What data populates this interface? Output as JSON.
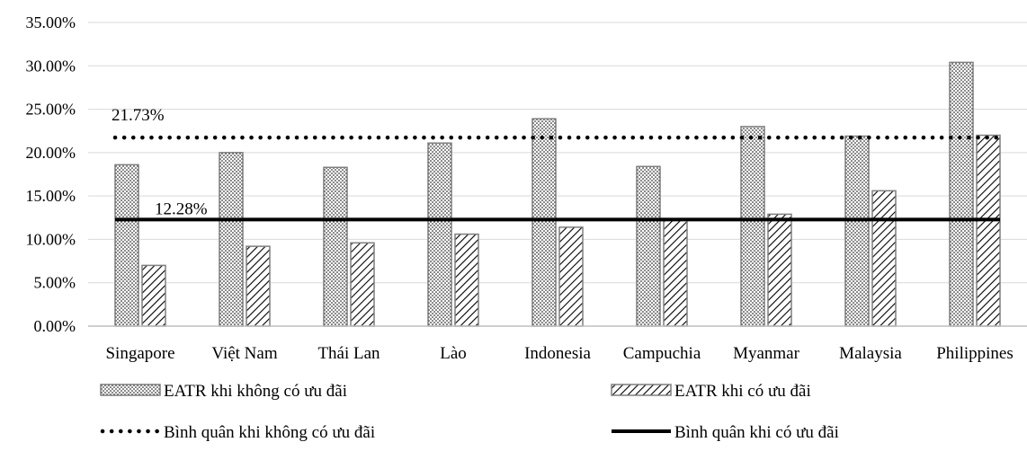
{
  "chart_data": {
    "type": "bar",
    "categories": [
      "Singapore",
      "Việt Nam",
      "Thái Lan",
      "Lào",
      "Indonesia",
      "Campuchia",
      "Myanmar",
      "Malaysia",
      "Philippines"
    ],
    "series": [
      {
        "name": "EATR khi không có ưu đãi",
        "values": [
          18.6,
          20.0,
          18.3,
          21.1,
          23.9,
          18.4,
          23.0,
          21.9,
          30.4
        ]
      },
      {
        "name": "EATR khi có ưu đãi",
        "values": [
          7.0,
          9.2,
          9.6,
          10.6,
          11.4,
          12.3,
          12.9,
          15.6,
          22.0
        ]
      }
    ],
    "reference_lines": [
      {
        "name": "Bình quân khi không có ưu đãi",
        "value": 21.73,
        "label": "21.73%",
        "style": "dotted"
      },
      {
        "name": "Bình quân khi có ưu đãi",
        "value": 12.28,
        "label": "12.28%",
        "style": "solid"
      }
    ],
    "yticks": [
      "0.00%",
      "5.00%",
      "10.00%",
      "15.00%",
      "20.00%",
      "25.00%",
      "30.00%",
      "35.00%"
    ],
    "ylim": [
      0,
      35
    ],
    "grid": true,
    "legend_position": "bottom",
    "title": "",
    "xlabel": "",
    "ylabel": ""
  },
  "legend": {
    "items": [
      {
        "label": "EATR khi không có ưu đãi",
        "kind": "dots-bar"
      },
      {
        "label": "EATR khi có ưu đãi",
        "kind": "hatch-bar"
      },
      {
        "label": "Bình quân khi không có ưu đãi",
        "kind": "dotted-line"
      },
      {
        "label": "Bình quân khi có ưu đãi",
        "kind": "solid-line"
      }
    ]
  },
  "colors": {
    "grid": "#d9d9d9",
    "axis": "#bfbfbf",
    "bar_stroke": "#7f7f7f",
    "line": "#000000"
  }
}
